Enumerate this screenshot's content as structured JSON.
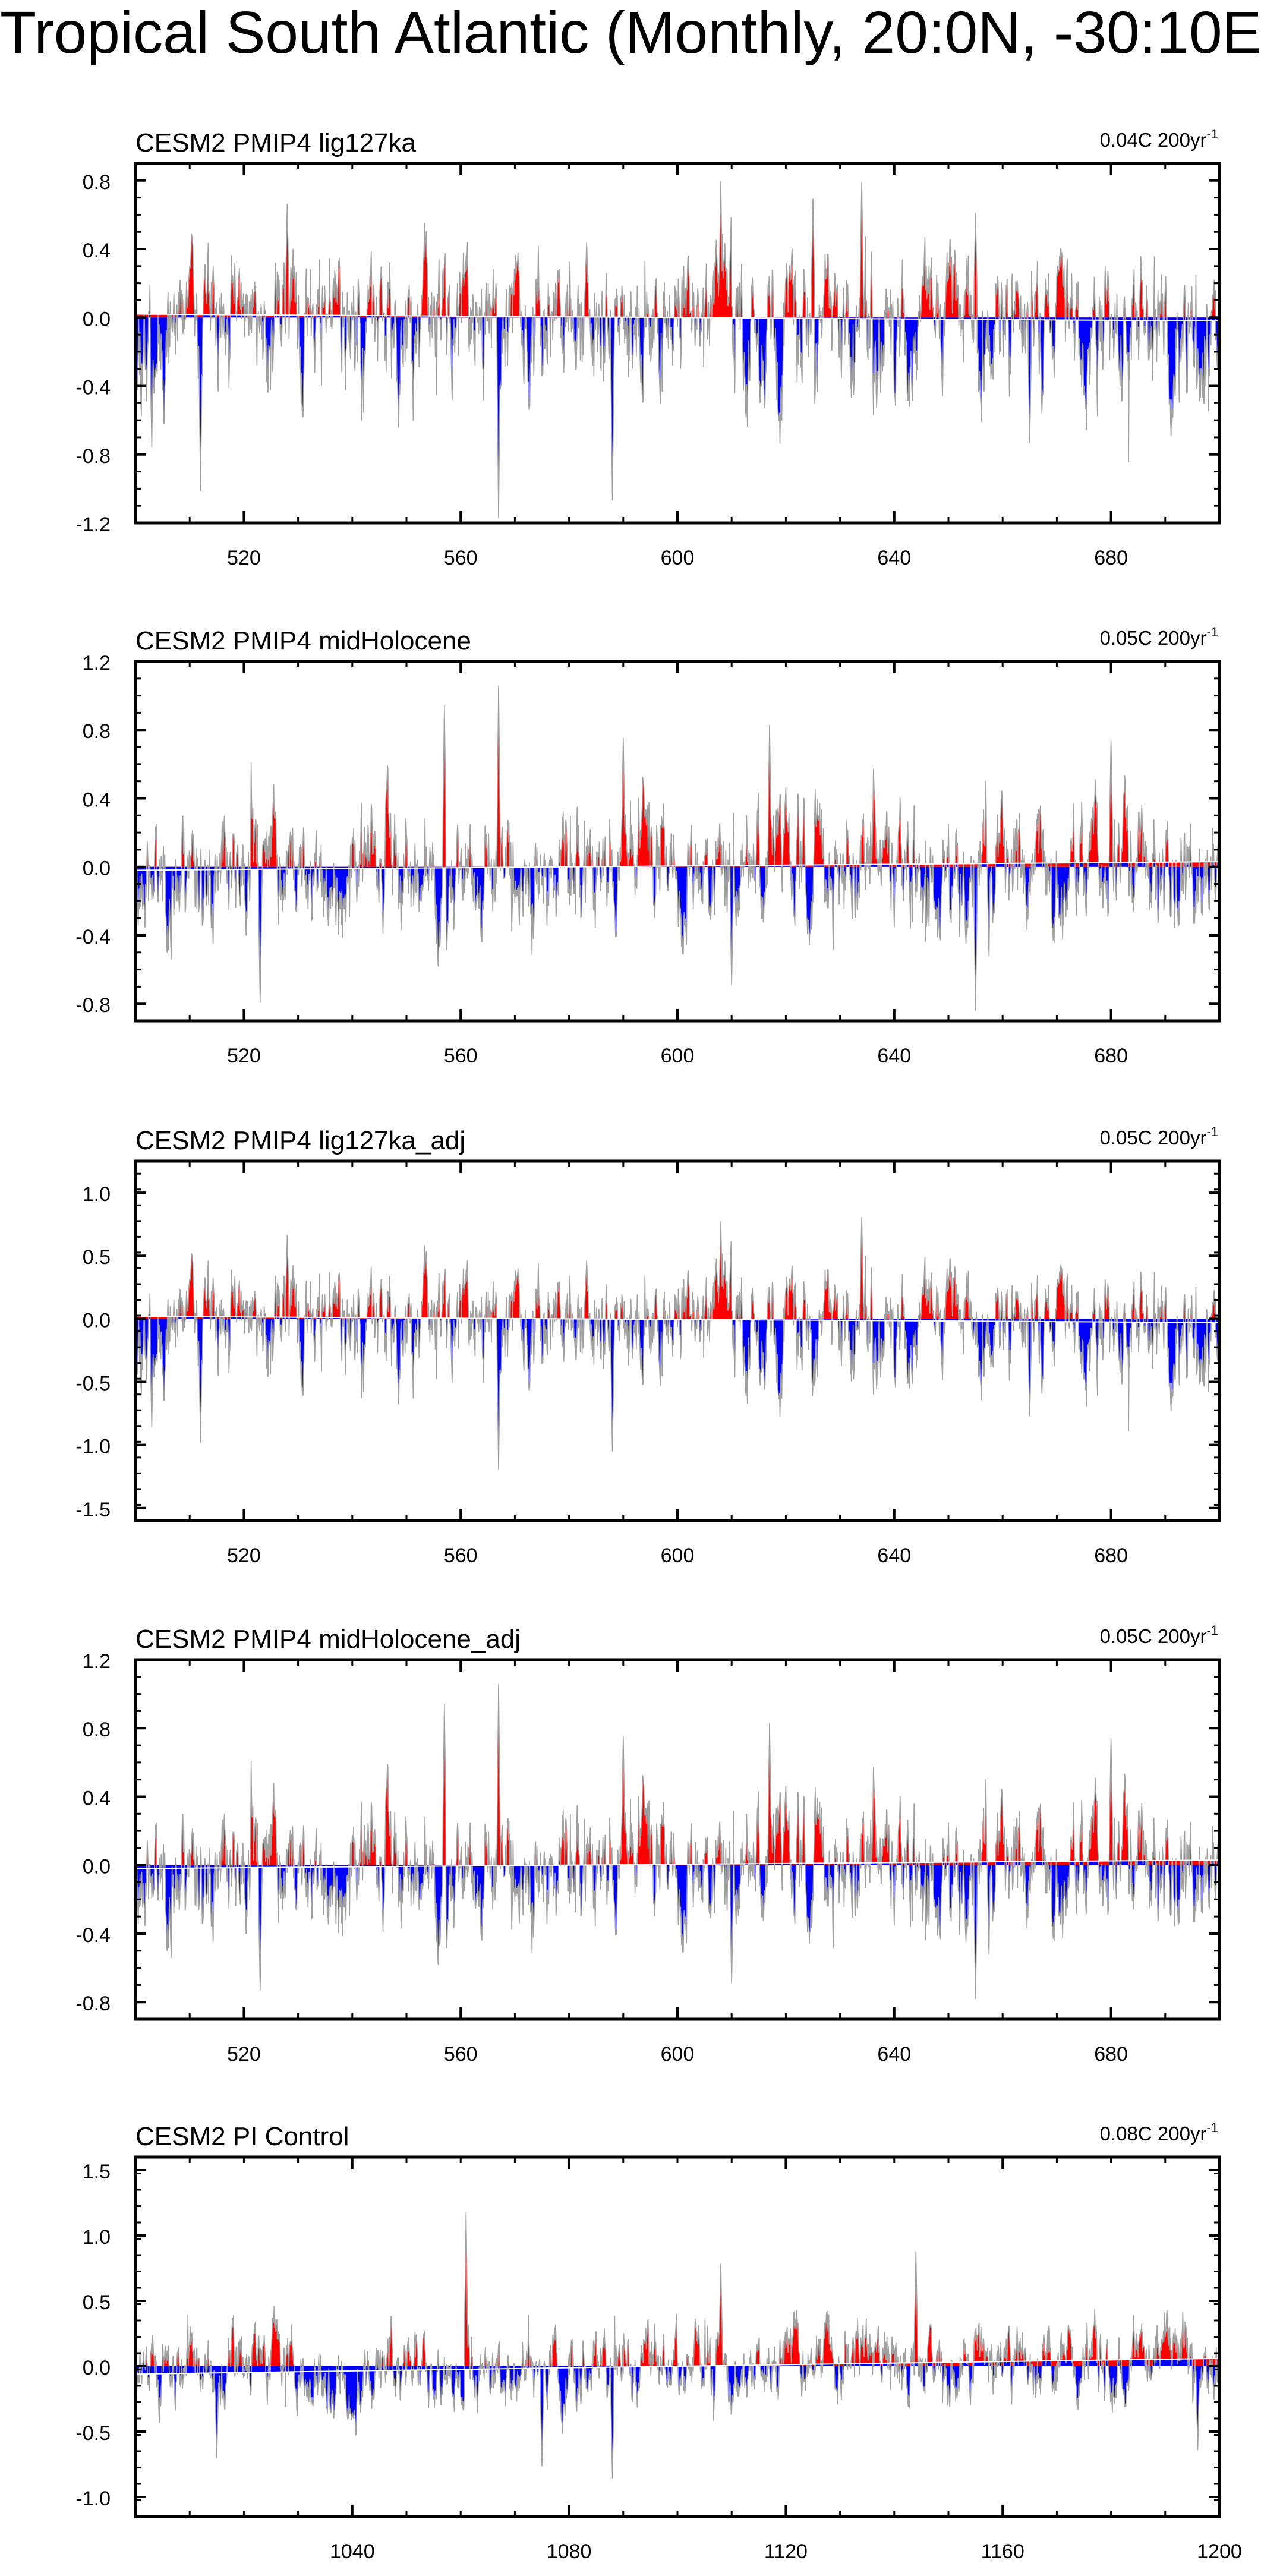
{
  "title": "Tropical South Atlantic (Monthly, 20:0N, -30:10E)",
  "colors": {
    "positive": "#ff0000",
    "negative": "#0000ff",
    "trace": "#a0a0a0",
    "axis": "#000000"
  },
  "chart_data": [
    {
      "type": "area",
      "title": "CESM2 PMIP4 lig127ka",
      "trend_label": "0.04C 200yr",
      "trend_sup": "-1",
      "xlim": [
        500,
        700
      ],
      "ylim": [
        -1.2,
        0.9
      ],
      "xticks": [
        520,
        560,
        600,
        640,
        680
      ],
      "xticklabels": [
        "520",
        "560",
        "600",
        "640",
        "680"
      ],
      "yticks": [
        -1.2,
        -0.8,
        -0.4,
        0.0,
        0.4,
        0.8
      ],
      "yticklabels": [
        "-1.2",
        "-0.8",
        "-0.4",
        "0.0",
        "0.4",
        "0.8"
      ],
      "trend_line": [
        0.02,
        -0.02
      ],
      "seed": 11,
      "amp_pos": 0.75,
      "amp_neg": 1.15,
      "spikes": [
        [
          503,
          -0.78
        ],
        [
          512,
          -1.03
        ],
        [
          528,
          0.65
        ],
        [
          567,
          -1.18
        ],
        [
          588,
          -1.07
        ],
        [
          608,
          0.8
        ],
        [
          634,
          0.8
        ],
        [
          625,
          0.7
        ],
        [
          665,
          -0.72
        ],
        [
          655,
          0.62
        ]
      ]
    },
    {
      "type": "area",
      "title": "CESM2 PMIP4 midHolocene",
      "trend_label": "0.05C 200yr",
      "trend_sup": "-1",
      "xlim": [
        500,
        700
      ],
      "ylim": [
        -0.9,
        1.2
      ],
      "xticks": [
        520,
        560,
        600,
        640,
        680
      ],
      "xticklabels": [
        "520",
        "560",
        "600",
        "640",
        "680"
      ],
      "yticks": [
        -0.8,
        -0.4,
        0.0,
        0.4,
        0.8,
        1.2
      ],
      "yticklabels": [
        "-0.8",
        "-0.4",
        "0.0",
        "0.4",
        "0.8",
        "1.2"
      ],
      "trend_line": [
        -0.02,
        0.03
      ],
      "seed": 23,
      "amp_pos": 0.8,
      "amp_neg": 0.8,
      "spikes": [
        [
          567,
          1.06
        ],
        [
          557,
          0.95
        ],
        [
          617,
          0.82
        ],
        [
          523,
          -0.78
        ],
        [
          655,
          -0.86
        ],
        [
          610,
          -0.7
        ],
        [
          590,
          0.75
        ],
        [
          680,
          0.72
        ]
      ]
    },
    {
      "type": "area",
      "title": "CESM2 PMIP4 lig127ka_adj",
      "trend_label": "0.05C 200yr",
      "trend_sup": "-1",
      "xlim": [
        500,
        700
      ],
      "ylim": [
        -1.6,
        1.25
      ],
      "xticks": [
        520,
        560,
        600,
        640,
        680
      ],
      "xticklabels": [
        "520",
        "560",
        "600",
        "640",
        "680"
      ],
      "yticks": [
        -1.5,
        -1.0,
        -0.5,
        0.0,
        0.5,
        1.0
      ],
      "yticklabels": [
        "-1.5",
        "-1.0",
        "-0.5",
        "0.0",
        "0.5",
        "1.0"
      ],
      "trend_line": [
        0.02,
        -0.03
      ],
      "seed": 11,
      "amp_pos": 0.8,
      "amp_neg": 1.2,
      "spikes": [
        [
          503,
          -0.88
        ],
        [
          512,
          -1.0
        ],
        [
          567,
          -1.2
        ],
        [
          588,
          -1.05
        ],
        [
          634,
          0.82
        ],
        [
          608,
          0.78
        ],
        [
          528,
          0.65
        ],
        [
          665,
          -0.75
        ]
      ]
    },
    {
      "type": "area",
      "title": "CESM2 PMIP4 midHolocene_adj",
      "trend_label": "0.05C 200yr",
      "trend_sup": "-1",
      "xlim": [
        500,
        700
      ],
      "ylim": [
        -0.9,
        1.2
      ],
      "xticks": [
        520,
        560,
        600,
        640,
        680
      ],
      "xticklabels": [
        "520",
        "560",
        "600",
        "640",
        "680"
      ],
      "yticks": [
        -0.8,
        -0.4,
        0.0,
        0.4,
        0.8,
        1.2
      ],
      "yticklabels": [
        "-0.8",
        "-0.4",
        "0.0",
        "0.4",
        "0.8",
        "1.2"
      ],
      "trend_line": [
        -0.02,
        0.03
      ],
      "seed": 23,
      "amp_pos": 0.8,
      "amp_neg": 0.8,
      "spikes": [
        [
          567,
          1.06
        ],
        [
          557,
          0.95
        ],
        [
          617,
          0.82
        ],
        [
          523,
          -0.72
        ],
        [
          655,
          -0.8
        ],
        [
          610,
          -0.7
        ],
        [
          590,
          0.75
        ],
        [
          680,
          0.72
        ]
      ]
    },
    {
      "type": "area",
      "title": "CESM2 PI Control",
      "trend_label": "0.08C 200yr",
      "trend_sup": "-1",
      "xlim": [
        1000,
        1200
      ],
      "ylim": [
        -1.15,
        1.6
      ],
      "xticks": [
        1040,
        1080,
        1120,
        1160,
        1200
      ],
      "xticklabels": [
        "1040",
        "1080",
        "1120",
        "1160",
        "1200"
      ],
      "yticks": [
        -1.0,
        -0.5,
        0.0,
        0.5,
        1.0,
        1.5
      ],
      "yticklabels": [
        "-1.0",
        "-0.5",
        "0.0",
        "0.5",
        "1.0",
        "1.5"
      ],
      "trend_line": [
        -0.06,
        0.06
      ],
      "seed": 37,
      "amp_pos": 0.65,
      "amp_neg": 0.7,
      "spikes": [
        [
          1061,
          1.2
        ],
        [
          1088,
          -0.85
        ],
        [
          1108,
          0.78
        ],
        [
          1144,
          0.85
        ],
        [
          1075,
          -0.75
        ],
        [
          1015,
          -0.65
        ],
        [
          1196,
          -0.7
        ]
      ]
    }
  ]
}
